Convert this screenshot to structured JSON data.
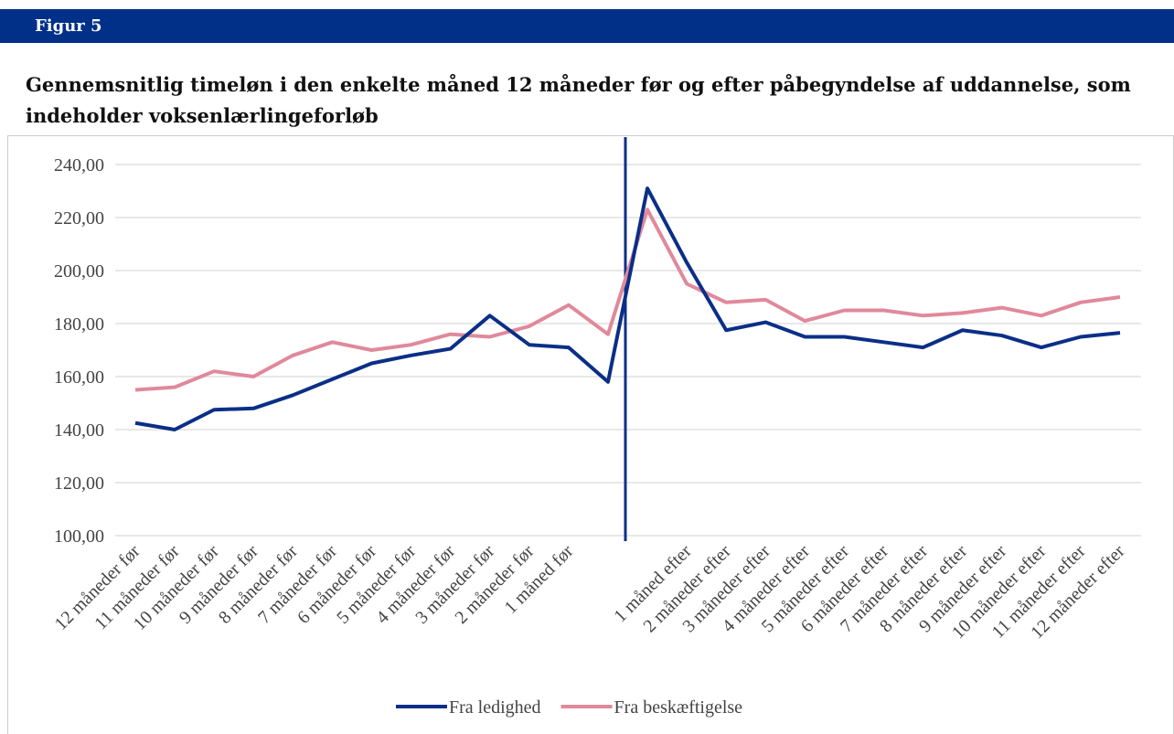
{
  "figure_label": "Figur 5",
  "chart_data": {
    "type": "line",
    "title": "Gennemsnitlig timeløn i den enkelte måned 12 måneder før og efter påbegyndelse af uddannelse, som indeholder voksenlærlingeforløb",
    "categories": [
      "12 måneder før",
      "11 måneder før",
      "10 måneder før",
      "9 måneder før",
      "8 måneder før",
      "7 måneder før",
      "6 måneder før",
      "5 måneder før",
      "4 måneder før",
      "3 måneder før",
      "2 måneder før",
      "1 måned før",
      null,
      null,
      "1 måned efter",
      "2 måneder efter",
      "3 måneder efter",
      "4 måneder efter",
      "5 måneder efter",
      "6 måneder efter",
      "7 måneder efter",
      "8 måneder efter",
      "9 måneder efter",
      "10 måneder efter",
      "11 måneder efter",
      "12 måneder efter"
    ],
    "series": [
      {
        "name": "Fra ledighed",
        "color": "#0b2f87",
        "values": [
          142.5,
          140,
          147.5,
          148,
          153,
          159,
          165,
          168,
          170.5,
          183,
          172,
          171,
          158,
          231,
          203,
          177.5,
          180.5,
          175,
          175,
          173,
          171,
          177.5,
          175.5,
          171,
          175,
          176.5
        ]
      },
      {
        "name": "Fra beskæftigelse",
        "color": "#e0899b",
        "values": [
          155,
          156,
          162,
          160,
          168,
          173,
          170,
          172,
          176,
          175,
          179,
          187,
          176,
          223,
          195,
          188,
          189,
          181,
          185,
          185,
          183,
          184,
          186,
          183,
          188,
          190
        ]
      }
    ],
    "ylim": [
      100,
      240
    ],
    "yticks": [
      {
        "value": 100,
        "label": "100,00"
      },
      {
        "value": 120,
        "label": "120,00"
      },
      {
        "value": 140,
        "label": "140,00"
      },
      {
        "value": 160,
        "label": "160,00"
      },
      {
        "value": 180,
        "label": "180,00"
      },
      {
        "value": 200,
        "label": "200,00"
      },
      {
        "value": 220,
        "label": "220,00"
      },
      {
        "value": 240,
        "label": "240,00"
      }
    ],
    "grid": true,
    "legend": "bottom"
  }
}
